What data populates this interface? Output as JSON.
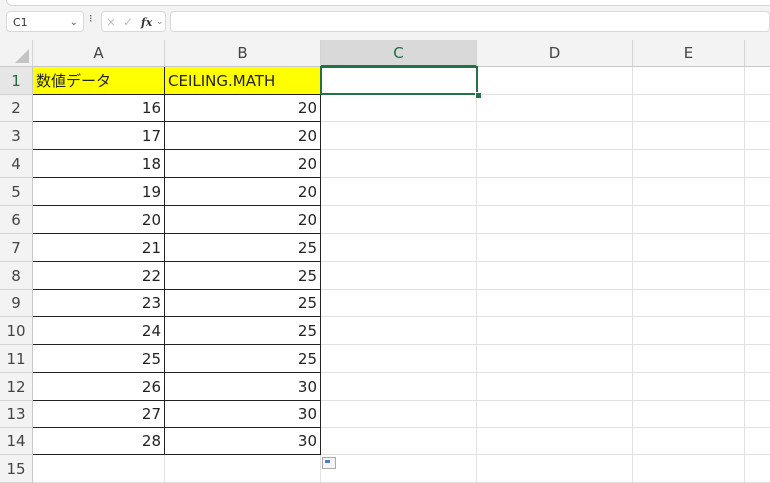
{
  "formula_bar": {
    "name_box": "C1",
    "cancel_icon": "×",
    "enter_icon": "✓",
    "fx_label": "fx",
    "formula": ""
  },
  "columns": [
    "A",
    "B",
    "C",
    "D",
    "E"
  ],
  "selected_cell": "C1",
  "header_fill": "#ffff00",
  "rows": [
    {
      "n": "1",
      "a": "数値データ",
      "b": "CEILING.MATH"
    },
    {
      "n": "2",
      "a": "16",
      "b": "20"
    },
    {
      "n": "3",
      "a": "17",
      "b": "20"
    },
    {
      "n": "4",
      "a": "18",
      "b": "20"
    },
    {
      "n": "5",
      "a": "19",
      "b": "20"
    },
    {
      "n": "6",
      "a": "20",
      "b": "20"
    },
    {
      "n": "7",
      "a": "21",
      "b": "25"
    },
    {
      "n": "8",
      "a": "22",
      "b": "25"
    },
    {
      "n": "9",
      "a": "23",
      "b": "25"
    },
    {
      "n": "10",
      "a": "24",
      "b": "25"
    },
    {
      "n": "11",
      "a": "25",
      "b": "25"
    },
    {
      "n": "12",
      "a": "26",
      "b": "30"
    },
    {
      "n": "13",
      "a": "27",
      "b": "30"
    },
    {
      "n": "14",
      "a": "28",
      "b": "30"
    },
    {
      "n": "15",
      "a": "",
      "b": ""
    }
  ]
}
